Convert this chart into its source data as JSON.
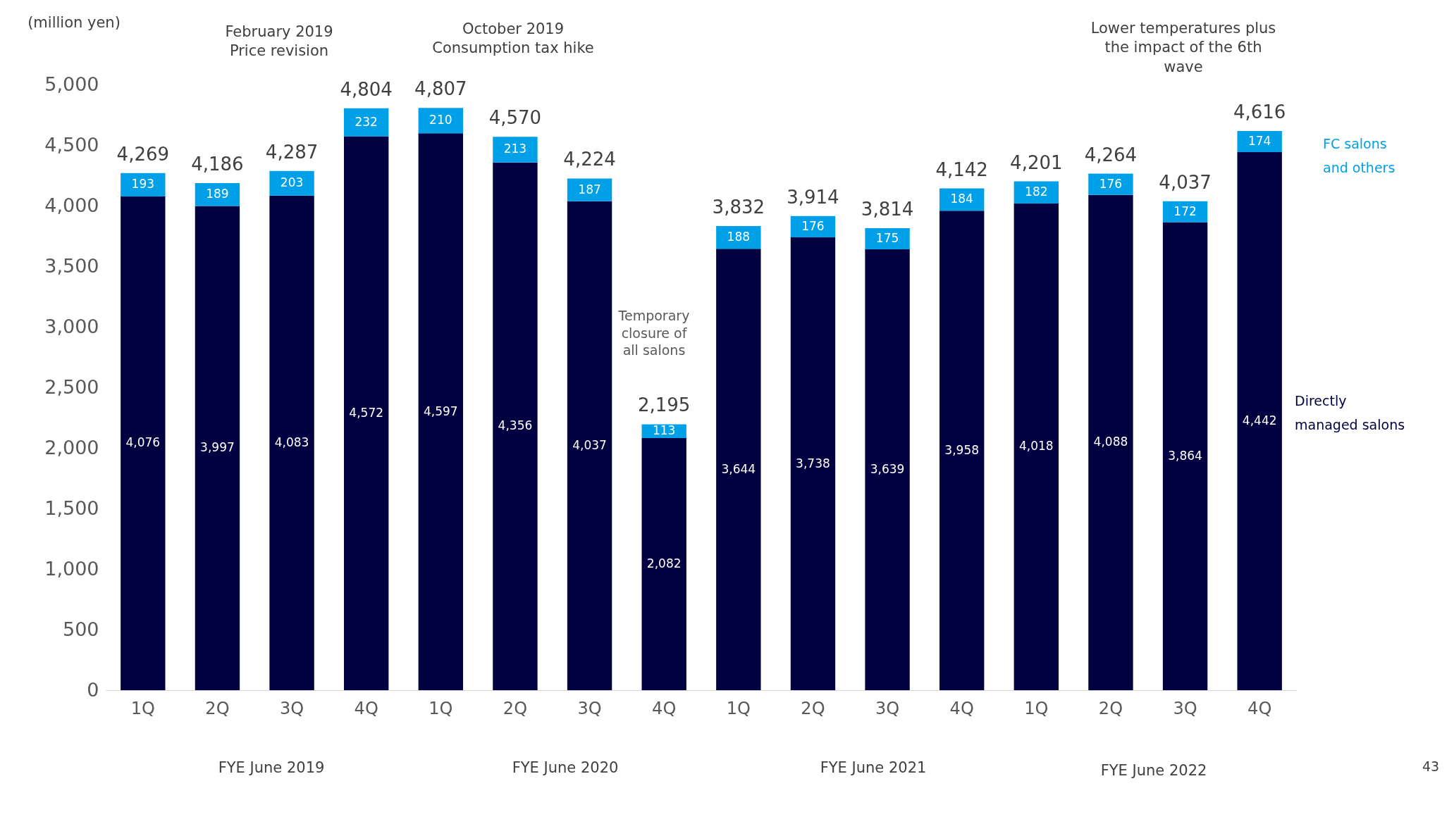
{
  "chart_data": {
    "type": "bar",
    "stacked": true,
    "ylabel": "(million yen)",
    "categories": [
      "1Q",
      "2Q",
      "3Q",
      "4Q",
      "1Q",
      "2Q",
      "3Q",
      "4Q",
      "1Q",
      "2Q",
      "3Q",
      "4Q",
      "1Q",
      "2Q",
      "3Q",
      "4Q"
    ],
    "series": [
      {
        "name": "Directly managed salons",
        "color": "#000040",
        "values": [
          4076,
          3997,
          4083,
          4572,
          4597,
          4356,
          4037,
          2082,
          3644,
          3738,
          3639,
          3958,
          4018,
          4088,
          3864,
          4442
        ],
        "value_labels": [
          "4,076",
          "3,997",
          "4,083",
          "4,572",
          "4,597",
          "4,356",
          "4,037",
          "2,082",
          "3,644",
          "3,738",
          "3,639",
          "3,958",
          "4,018",
          "4,088",
          "3,864",
          "4,442"
        ]
      },
      {
        "name": "FC salons and others",
        "color": "#00a0e9",
        "values": [
          193,
          189,
          203,
          232,
          210,
          213,
          187,
          113,
          188,
          176,
          175,
          184,
          182,
          176,
          172,
          174
        ],
        "value_labels": [
          "193",
          "189",
          "203",
          "232",
          "210",
          "213",
          "187",
          "113",
          "188",
          "176",
          "175",
          "184",
          "182",
          "176",
          "172",
          "174"
        ]
      }
    ],
    "totals": [
      "4,269",
      "4,186",
      "4,287",
      "4,804",
      "4,807",
      "4,570",
      "4,224",
      "2,195",
      "3,832",
      "3,914",
      "3,814",
      "4,142",
      "4,201",
      "4,264",
      "4,037",
      "4,616"
    ],
    "ylim": [
      0,
      5000
    ],
    "yticks": [
      0,
      500,
      {
        "value": 1000,
        "label": "1,000"
      },
      {
        "value": 1500,
        "label": "1,500"
      },
      {
        "value": 2000,
        "label": "2,000"
      },
      {
        "value": 2500,
        "label": "2,500"
      },
      {
        "value": 3000,
        "label": "3,000"
      },
      {
        "value": 3500,
        "label": "3,500"
      },
      {
        "value": 4000,
        "label": "4,000"
      },
      {
        "value": 4500,
        "label": "4,500"
      },
      {
        "value": 5000,
        "label": "5,000"
      }
    ],
    "grid": false,
    "annotations": [
      "February 2019\nPrice revision",
      "October 2019\nConsumption tax hike",
      "Temporary\nclosure of\nall salons",
      "Lower temperatures plus\nthe impact of the 6th\nwave",
      "FYE June 2019",
      "FYE June 2020",
      "FYE June 2021",
      "FYE June 2022",
      "43"
    ]
  }
}
